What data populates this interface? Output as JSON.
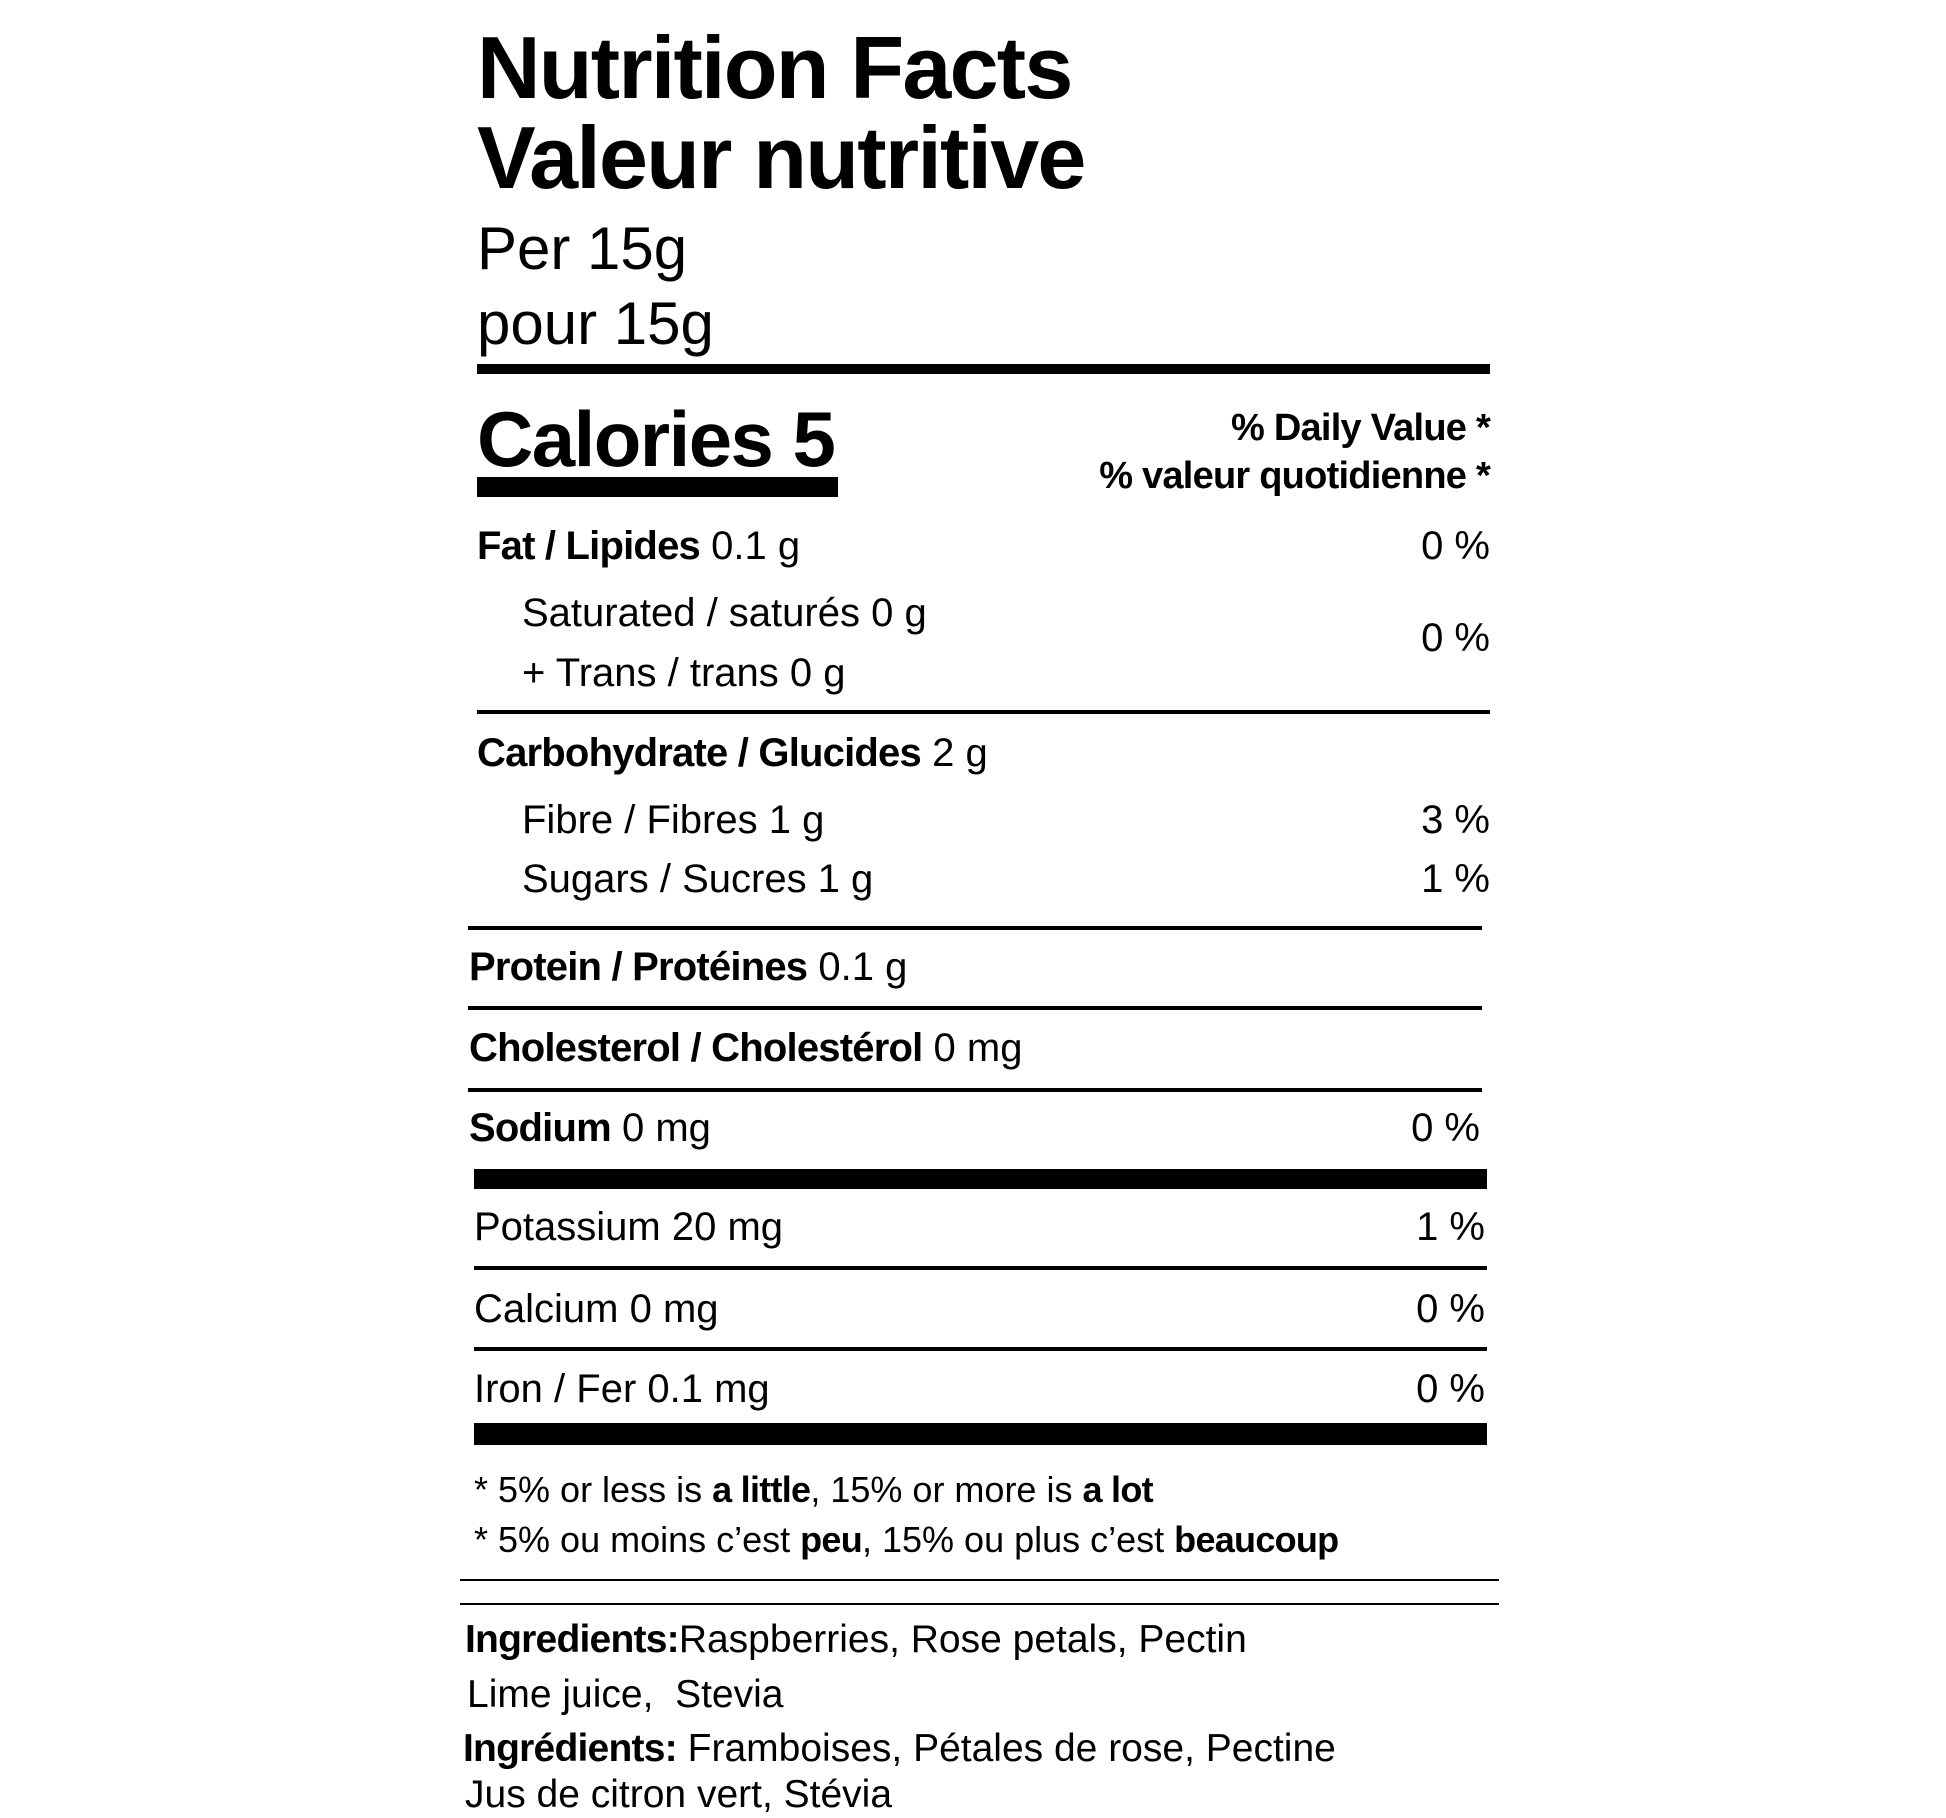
{
  "header": {
    "title_en": "Nutrition Facts",
    "title_fr": "Valeur nutritive",
    "serving_en": "Per 15g",
    "serving_fr": "pour 15g"
  },
  "calories": {
    "label": "Calories",
    "value": "5"
  },
  "daily_value_header": {
    "en": "% Daily Value *",
    "fr": "% valeur quotidienne *"
  },
  "nutrients": {
    "fat": {
      "label": "Fat / Lipides",
      "amount": "0.1 g",
      "dv": "0 %"
    },
    "saturated_trans": {
      "saturated": "Saturated / saturés 0 g",
      "trans": "+ Trans / trans 0 g",
      "dv": "0 %"
    },
    "carbohydrate": {
      "label": "Carbohydrate / Glucides",
      "amount": "2 g"
    },
    "fibre": {
      "text": "Fibre / Fibres 1 g",
      "dv": "3 %"
    },
    "sugars": {
      "text": "Sugars / Sucres 1 g",
      "dv": "1 %"
    },
    "protein": {
      "label": "Protein / Protéines",
      "amount": "0.1 g"
    },
    "cholesterol": {
      "label": "Cholesterol / Cholestérol",
      "amount": "0 mg"
    },
    "sodium": {
      "label": "Sodium",
      "amount": "0 mg",
      "dv": "0 %"
    },
    "potassium": {
      "text": "Potassium 20 mg",
      "dv": "1 %"
    },
    "calcium": {
      "text": "Calcium 0 mg",
      "dv": "0 %"
    },
    "iron": {
      "text": "Iron / Fer 0.1 mg",
      "dv": "0 %"
    }
  },
  "footnote": {
    "en": [
      "* 5% or less is ",
      "a little",
      ", 15% or more is ",
      "a lot"
    ],
    "fr": [
      "* 5% ou moins c’est ",
      "peu",
      ", 15% ou plus c’est ",
      "beaucoup"
    ]
  },
  "ingredients": {
    "en_label": "Ingredients:",
    "en_line1": "Raspberries, Rose petals, Pectin",
    "en_line2": "Lime juice,  Stevia",
    "fr_label": "Ingrédients:",
    "fr_line1": "Framboises, Pétales de rose, Pectine",
    "fr_line2": "Jus de citron vert, Stévia"
  }
}
